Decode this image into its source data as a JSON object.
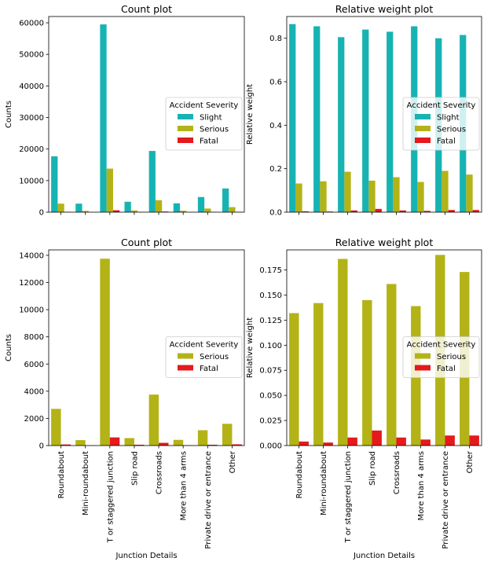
{
  "chart_data": [
    {
      "type": "bar",
      "title": "Count plot",
      "xlabel": "",
      "ylabel": "Counts",
      "ylim": [
        0,
        62000
      ],
      "yticks": [
        0,
        10000,
        20000,
        30000,
        40000,
        50000,
        60000
      ],
      "categories": [
        "Roundabout",
        "Mini-roundabout",
        "T or staggered junction",
        "Slip road",
        "Crossroads",
        "More than 4 arms",
        "Private drive or entrance",
        "Other"
      ],
      "show_category_labels": false,
      "legend_title": "Accident Severity",
      "legend_position": "center-right",
      "series": [
        {
          "name": "Slight",
          "color": "#17b3b3",
          "values": [
            17700,
            2700,
            59500,
            3300,
            19400,
            2800,
            4800,
            7500
          ]
        },
        {
          "name": "Serious",
          "color": "#b3b317",
          "values": [
            2700,
            400,
            13800,
            550,
            3800,
            450,
            1150,
            1600
          ]
        },
        {
          "name": "Fatal",
          "color": "#e41a1c",
          "values": [
            80,
            15,
            600,
            60,
            200,
            25,
            60,
            90
          ]
        }
      ]
    },
    {
      "type": "bar",
      "title": "Relative weight plot",
      "xlabel": "",
      "ylabel": "Relative weight",
      "ylim": [
        0,
        0.9
      ],
      "yticks": [
        0.0,
        0.2,
        0.4,
        0.6,
        0.8
      ],
      "categories": [
        "Roundabout",
        "Mini-roundabout",
        "T or staggered junction",
        "Slip road",
        "Crossroads",
        "More than 4 arms",
        "Private drive or entrance",
        "Other"
      ],
      "show_category_labels": false,
      "legend_title": "Accident Severity",
      "legend_position": "center-right",
      "series": [
        {
          "name": "Slight",
          "color": "#17b3b3",
          "values": [
            0.865,
            0.855,
            0.805,
            0.84,
            0.83,
            0.855,
            0.8,
            0.815
          ]
        },
        {
          "name": "Serious",
          "color": "#b3b317",
          "values": [
            0.132,
            0.142,
            0.186,
            0.145,
            0.161,
            0.139,
            0.19,
            0.173
          ]
        },
        {
          "name": "Fatal",
          "color": "#e41a1c",
          "values": [
            0.004,
            0.003,
            0.008,
            0.015,
            0.008,
            0.006,
            0.01,
            0.01
          ]
        }
      ]
    },
    {
      "type": "bar",
      "title": "Count plot",
      "xlabel": "Junction Details",
      "ylabel": "Counts",
      "ylim": [
        0,
        14400
      ],
      "yticks": [
        0,
        2000,
        4000,
        6000,
        8000,
        10000,
        12000,
        14000
      ],
      "categories": [
        "Roundabout",
        "Mini-roundabout",
        "T or staggered junction",
        "Slip road",
        "Crossroads",
        "More than 4 arms",
        "Private drive or entrance",
        "Other"
      ],
      "show_category_labels": true,
      "legend_title": "Accident Severity",
      "legend_position": "center-right",
      "series": [
        {
          "name": "Serious",
          "color": "#b3b317",
          "values": [
            2700,
            400,
            13750,
            550,
            3750,
            420,
            1130,
            1600
          ]
        },
        {
          "name": "Fatal",
          "color": "#e41a1c",
          "values": [
            80,
            15,
            600,
            60,
            200,
            25,
            60,
            90
          ]
        }
      ]
    },
    {
      "type": "bar",
      "title": "Relative weight plot",
      "xlabel": "Junction Details",
      "ylabel": "Relative weight",
      "ylim": [
        0,
        0.195
      ],
      "yticks": [
        0.0,
        0.025,
        0.05,
        0.075,
        0.1,
        0.125,
        0.15,
        0.175
      ],
      "ytick_labels": [
        "0.000",
        "0.025",
        "0.050",
        "0.075",
        "0.100",
        "0.125",
        "0.150",
        "0.175"
      ],
      "categories": [
        "Roundabout",
        "Mini-roundabout",
        "T or staggered junction",
        "Slip road",
        "Crossroads",
        "More than 4 arms",
        "Private drive or entrance",
        "Other"
      ],
      "show_category_labels": true,
      "legend_title": "Accident Severity",
      "legend_position": "center-right",
      "series": [
        {
          "name": "Serious",
          "color": "#b3b317",
          "values": [
            0.132,
            0.142,
            0.186,
            0.145,
            0.161,
            0.139,
            0.19,
            0.173
          ]
        },
        {
          "name": "Fatal",
          "color": "#e41a1c",
          "values": [
            0.004,
            0.003,
            0.008,
            0.015,
            0.008,
            0.006,
            0.01,
            0.01
          ]
        }
      ]
    }
  ]
}
